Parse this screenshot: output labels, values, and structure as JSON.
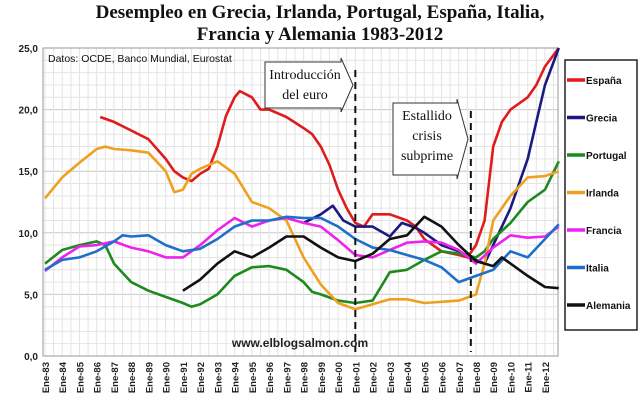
{
  "chart_data": {
    "type": "line",
    "title_lines": [
      "Desempleo en Grecia, Irlanda, Portugal, España, Italia,",
      "Francia y Alemania 1983-2012"
    ],
    "source_note": "Datos: OCDE, Banco Mundial, Eurostat",
    "watermark": "www.elblogsalmon.com",
    "ylim": [
      0,
      25
    ],
    "yticks": [
      "0,0",
      "5,0",
      "10,0",
      "15,0",
      "20,0",
      "25,0"
    ],
    "xticks": [
      "Ene-83",
      "Ene-84",
      "Ene-85",
      "Ene-86",
      "Ene-87",
      "Ene-88",
      "Ene-89",
      "Ene-90",
      "Ene-91",
      "Ene-92",
      "Ene-93",
      "Ene-94",
      "Ene-95",
      "Ene-96",
      "Ene-97",
      "Ene-98",
      "Ene-99",
      "Ene-00",
      "Ene-01",
      "Ene-02",
      "Ene-03",
      "Ene-04",
      "Ene-05",
      "Ene-06",
      "Ene-07",
      "Ene-08",
      "Ene-09",
      "Ene-10",
      "Ene-11",
      "Ene-12"
    ],
    "xlim": [
      1983,
      2012.9
    ],
    "grid": true,
    "legend_position": "right",
    "annotations": [
      {
        "text_lines": [
          "Introducción",
          "del euro"
        ],
        "x": 2001.0
      },
      {
        "text_lines": [
          "Estallido",
          "crisis",
          "subprime"
        ],
        "x": 2007.7
      }
    ],
    "series": [
      {
        "name": "España",
        "color": "#e01b1b",
        "points": [
          [
            1986.2,
            19.4
          ],
          [
            1987,
            19.0
          ],
          [
            1988,
            18.3
          ],
          [
            1989,
            17.6
          ],
          [
            1990,
            16
          ],
          [
            1990.5,
            15
          ],
          [
            1991,
            14.5
          ],
          [
            1991.5,
            14.2
          ],
          [
            1992,
            14.8
          ],
          [
            1992.5,
            15.2
          ],
          [
            1993,
            17
          ],
          [
            1993.5,
            19.5
          ],
          [
            1994,
            21
          ],
          [
            1994.3,
            21.5
          ],
          [
            1995,
            21
          ],
          [
            1995.5,
            20
          ],
          [
            1996,
            20
          ],
          [
            1997,
            19.4
          ],
          [
            1998,
            18.5
          ],
          [
            1998.5,
            18
          ],
          [
            1999,
            17
          ],
          [
            1999.5,
            15.5
          ],
          [
            2000,
            13.5
          ],
          [
            2000.5,
            12
          ],
          [
            2001,
            10.8
          ],
          [
            2001.5,
            10.5
          ],
          [
            2002,
            11.5
          ],
          [
            2003,
            11.5
          ],
          [
            2004,
            11
          ],
          [
            2004.5,
            10.5
          ],
          [
            2005,
            9.5
          ],
          [
            2006,
            8.5
          ],
          [
            2007,
            8.2
          ],
          [
            2007.5,
            8
          ],
          [
            2008,
            9
          ],
          [
            2008.5,
            11
          ],
          [
            2009,
            17
          ],
          [
            2009.5,
            19
          ],
          [
            2010,
            20
          ],
          [
            2010.5,
            20.5
          ],
          [
            2011,
            21
          ],
          [
            2011.5,
            22
          ],
          [
            2012,
            23.5
          ],
          [
            2012.8,
            25
          ]
        ]
      },
      {
        "name": "Grecia",
        "color": "#1a1a80",
        "points": [
          [
            1998,
            10.8
          ],
          [
            1999,
            11.5
          ],
          [
            1999.7,
            12.2
          ],
          [
            2000.3,
            11
          ],
          [
            2001,
            10.5
          ],
          [
            2002,
            10.5
          ],
          [
            2003,
            9.7
          ],
          [
            2003.7,
            10.8
          ],
          [
            2004.5,
            10.4
          ],
          [
            2005,
            10
          ],
          [
            2006,
            9
          ],
          [
            2007,
            8.5
          ],
          [
            2008,
            7.8
          ],
          [
            2008.5,
            7.5
          ],
          [
            2009,
            9
          ],
          [
            2010,
            12
          ],
          [
            2011,
            16
          ],
          [
            2011.5,
            19
          ],
          [
            2012,
            22
          ],
          [
            2012.8,
            25
          ]
        ]
      },
      {
        "name": "Portugal",
        "color": "#1e8a1e",
        "points": [
          [
            1983,
            7.5
          ],
          [
            1984,
            8.6
          ],
          [
            1985,
            9
          ],
          [
            1986,
            9.3
          ],
          [
            1986.5,
            9
          ],
          [
            1987,
            7.5
          ],
          [
            1988,
            6
          ],
          [
            1989,
            5.3
          ],
          [
            1990,
            4.8
          ],
          [
            1991,
            4.3
          ],
          [
            1991.5,
            4
          ],
          [
            1992,
            4.2
          ],
          [
            1993,
            5
          ],
          [
            1994,
            6.5
          ],
          [
            1995,
            7.2
          ],
          [
            1996,
            7.3
          ],
          [
            1997,
            7
          ],
          [
            1998,
            6
          ],
          [
            1998.5,
            5.2
          ],
          [
            1999,
            5
          ],
          [
            2000,
            4.5
          ],
          [
            2001,
            4.3
          ],
          [
            2002,
            4.5
          ],
          [
            2003,
            6.8
          ],
          [
            2004,
            7
          ],
          [
            2005,
            7.8
          ],
          [
            2006,
            8.5
          ],
          [
            2007,
            8.3
          ],
          [
            2008,
            8
          ],
          [
            2008.5,
            8.5
          ],
          [
            2009,
            9.5
          ],
          [
            2010,
            10.8
          ],
          [
            2011,
            12.5
          ],
          [
            2012,
            13.5
          ],
          [
            2012.8,
            15.8
          ]
        ]
      },
      {
        "name": "Irlanda",
        "color": "#f0a020",
        "points": [
          [
            1983,
            12.8
          ],
          [
            1984,
            14.5
          ],
          [
            1985,
            15.7
          ],
          [
            1986,
            16.8
          ],
          [
            1986.5,
            17
          ],
          [
            1987,
            16.8
          ],
          [
            1988,
            16.7
          ],
          [
            1989,
            16.5
          ],
          [
            1990,
            15
          ],
          [
            1990.5,
            13.3
          ],
          [
            1991,
            13.5
          ],
          [
            1991.5,
            14.8
          ],
          [
            1992,
            15.2
          ],
          [
            1993,
            15.8
          ],
          [
            1994,
            14.8
          ],
          [
            1995,
            12.5
          ],
          [
            1996,
            12
          ],
          [
            1997,
            11
          ],
          [
            1998,
            8
          ],
          [
            1999,
            5.8
          ],
          [
            2000,
            4.3
          ],
          [
            2001,
            3.8
          ],
          [
            2002,
            4.2
          ],
          [
            2003,
            4.6
          ],
          [
            2004,
            4.6
          ],
          [
            2005,
            4.3
          ],
          [
            2006,
            4.4
          ],
          [
            2007,
            4.5
          ],
          [
            2008,
            5
          ],
          [
            2008.5,
            7.5
          ],
          [
            2009,
            11
          ],
          [
            2010,
            13
          ],
          [
            2011,
            14.5
          ],
          [
            2012,
            14.6
          ],
          [
            2012.8,
            15
          ]
        ]
      },
      {
        "name": "Francia",
        "color": "#ee22ee",
        "points": [
          [
            1983,
            6.9
          ],
          [
            1984,
            8
          ],
          [
            1985,
            8.9
          ],
          [
            1986,
            9
          ],
          [
            1987,
            9.3
          ],
          [
            1988,
            8.8
          ],
          [
            1989,
            8.5
          ],
          [
            1990,
            8
          ],
          [
            1991,
            8
          ],
          [
            1992,
            9
          ],
          [
            1993,
            10.2
          ],
          [
            1994,
            11.2
          ],
          [
            1995,
            10.5
          ],
          [
            1996,
            11
          ],
          [
            1997,
            11.2
          ],
          [
            1998,
            10.8
          ],
          [
            1999,
            10.5
          ],
          [
            2000,
            9.4
          ],
          [
            2001,
            8.2
          ],
          [
            2002,
            8
          ],
          [
            2003,
            8.6
          ],
          [
            2004,
            9.2
          ],
          [
            2005,
            9.3
          ],
          [
            2006,
            9.2
          ],
          [
            2007,
            8.6
          ],
          [
            2008,
            7.5
          ],
          [
            2009,
            8.8
          ],
          [
            2010,
            9.8
          ],
          [
            2011,
            9.6
          ],
          [
            2012,
            9.7
          ],
          [
            2012.8,
            10.5
          ]
        ]
      },
      {
        "name": "Italia",
        "color": "#1f6fc8",
        "points": [
          [
            1983,
            7
          ],
          [
            1984,
            7.8
          ],
          [
            1985,
            8
          ],
          [
            1986,
            8.5
          ],
          [
            1987,
            9.3
          ],
          [
            1987.5,
            9.8
          ],
          [
            1988,
            9.7
          ],
          [
            1989,
            9.8
          ],
          [
            1990,
            9
          ],
          [
            1991,
            8.5
          ],
          [
            1992,
            8.7
          ],
          [
            1993,
            9.5
          ],
          [
            1994,
            10.5
          ],
          [
            1995,
            11
          ],
          [
            1996,
            11
          ],
          [
            1997,
            11.3
          ],
          [
            1998,
            11.2
          ],
          [
            1999,
            11.2
          ],
          [
            2000,
            10.5
          ],
          [
            2001,
            9.5
          ],
          [
            2002,
            8.8
          ],
          [
            2003,
            8.6
          ],
          [
            2004,
            8.2
          ],
          [
            2005,
            7.8
          ],
          [
            2006,
            7.2
          ],
          [
            2007,
            6
          ],
          [
            2008,
            6.5
          ],
          [
            2009,
            7
          ],
          [
            2010,
            8.5
          ],
          [
            2011,
            8
          ],
          [
            2012,
            9.5
          ],
          [
            2012.8,
            10.7
          ]
        ]
      },
      {
        "name": "Alemania",
        "color": "#111111",
        "points": [
          [
            1991,
            5.3
          ],
          [
            1992,
            6.2
          ],
          [
            1993,
            7.5
          ],
          [
            1994,
            8.5
          ],
          [
            1995,
            8
          ],
          [
            1996,
            8.8
          ],
          [
            1997,
            9.7
          ],
          [
            1998,
            9.7
          ],
          [
            1999,
            8.8
          ],
          [
            2000,
            8
          ],
          [
            2001,
            7.7
          ],
          [
            2002,
            8.3
          ],
          [
            2003,
            9.5
          ],
          [
            2004,
            9.8
          ],
          [
            2005,
            11.3
          ],
          [
            2006,
            10.5
          ],
          [
            2007,
            9
          ],
          [
            2008,
            7.7
          ],
          [
            2009,
            7.3
          ],
          [
            2009.5,
            8
          ],
          [
            2010,
            7.5
          ],
          [
            2011,
            6.5
          ],
          [
            2012,
            5.6
          ],
          [
            2012.8,
            5.5
          ]
        ]
      }
    ]
  }
}
